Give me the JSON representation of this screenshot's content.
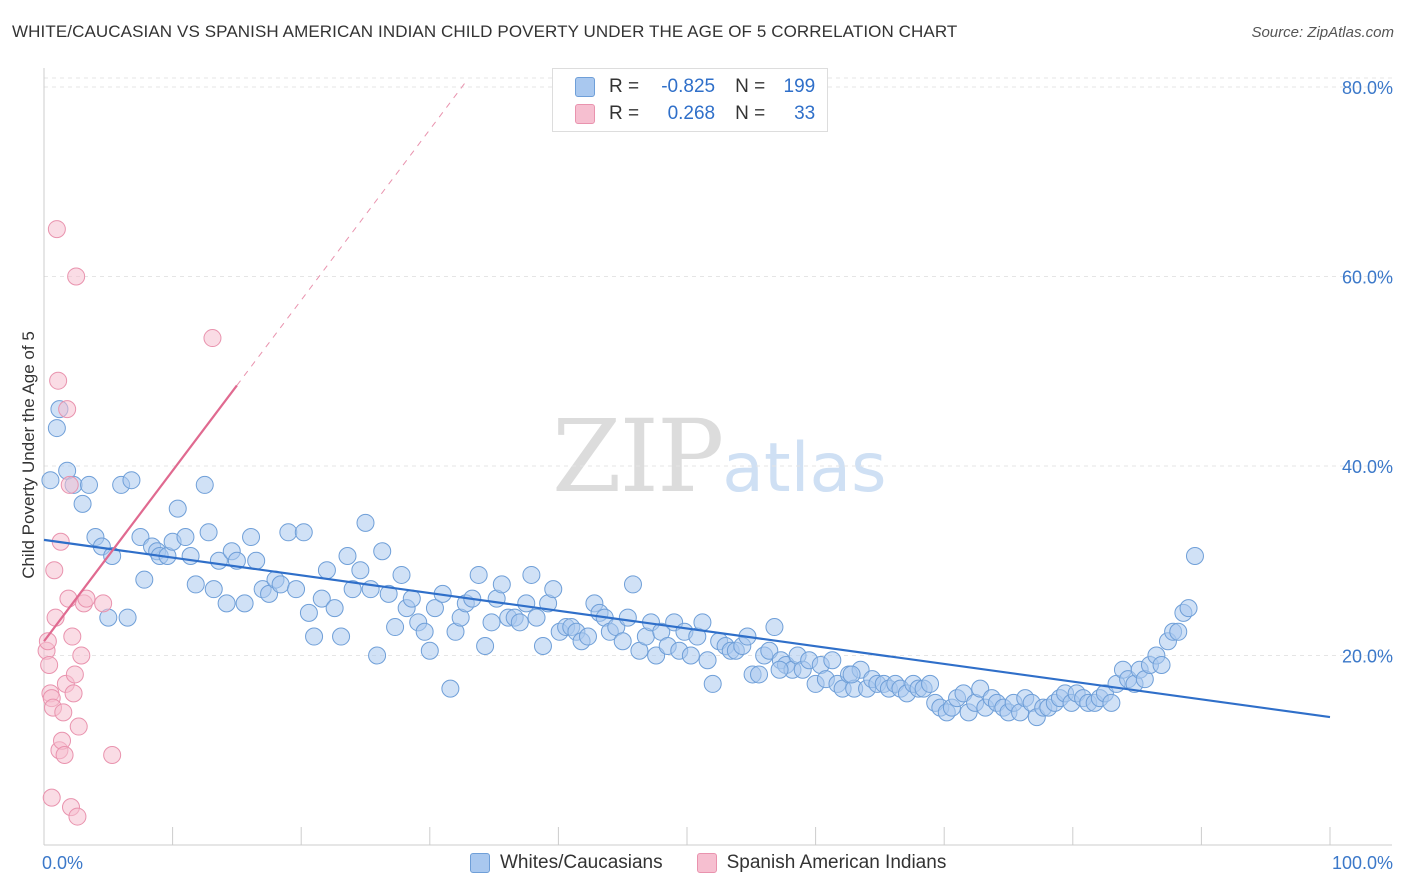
{
  "title": "WHITE/CAUCASIAN VS SPANISH AMERICAN INDIAN CHILD POVERTY UNDER THE AGE OF 5 CORRELATION CHART",
  "source": "Source: ZipAtlas.com",
  "watermark": {
    "zip": "ZIP",
    "atlas": "atlas"
  },
  "stats": [
    {
      "r_label": "R =",
      "r_value": "-0.825",
      "n_label": "N =",
      "n_value": "199"
    },
    {
      "r_label": "R =",
      "r_value": "0.268",
      "n_label": "N =",
      "n_value": "33"
    }
  ],
  "colors": {
    "blue_fill": "#a9c8ef",
    "blue_stroke": "#6f9fd8",
    "blue_line": "#2f6fc9",
    "pink_fill": "#f6bfd0",
    "pink_stroke": "#e993ae",
    "pink_line": "#e06a90",
    "axis_label": "#3b78c9",
    "grid": "#e5e5e5"
  },
  "chart_data": {
    "type": "scatter",
    "xlabel": "",
    "ylabel": "Child Poverty Under the Age of 5",
    "xlim": [
      0,
      100
    ],
    "ylim": [
      0,
      82
    ],
    "x_tick_labels": [
      "0.0%",
      "100.0%"
    ],
    "y_ticks": [
      20,
      40,
      60,
      80
    ],
    "y_tick_labels": [
      "20.0%",
      "40.0%",
      "60.0%",
      "80.0%"
    ],
    "grid": true,
    "legend": "bottom-center",
    "series": [
      {
        "name": "Whites/Caucasians",
        "points": [
          [
            0.5,
            38.5
          ],
          [
            1,
            44
          ],
          [
            1.2,
            46
          ],
          [
            1.8,
            39.5
          ],
          [
            2.3,
            38
          ],
          [
            3,
            36
          ],
          [
            3.5,
            38
          ],
          [
            4,
            32.5
          ],
          [
            4.5,
            31.5
          ],
          [
            5,
            24
          ],
          [
            5.3,
            30.5
          ],
          [
            6,
            38
          ],
          [
            6.5,
            24
          ],
          [
            6.8,
            38.5
          ],
          [
            7.5,
            32.5
          ],
          [
            7.8,
            28
          ],
          [
            8.4,
            31.5
          ],
          [
            8.8,
            31
          ],
          [
            9,
            30.5
          ],
          [
            9.6,
            30.5
          ],
          [
            10,
            32
          ],
          [
            10.4,
            35.5
          ],
          [
            11,
            32.5
          ],
          [
            11.4,
            30.5
          ],
          [
            11.8,
            27.5
          ],
          [
            12.5,
            38
          ],
          [
            12.8,
            33
          ],
          [
            13.2,
            27
          ],
          [
            13.6,
            30
          ],
          [
            14.2,
            25.5
          ],
          [
            14.6,
            31
          ],
          [
            15,
            30
          ],
          [
            15.6,
            25.5
          ],
          [
            16.1,
            32.5
          ],
          [
            16.5,
            30
          ],
          [
            17,
            27
          ],
          [
            17.5,
            26.5
          ],
          [
            18,
            28
          ],
          [
            18.4,
            27.5
          ],
          [
            19,
            33
          ],
          [
            19.6,
            27
          ],
          [
            20.2,
            33
          ],
          [
            20.6,
            24.5
          ],
          [
            21,
            22
          ],
          [
            21.6,
            26
          ],
          [
            22,
            29
          ],
          [
            22.6,
            25
          ],
          [
            23.1,
            22
          ],
          [
            23.6,
            30.5
          ],
          [
            24,
            27
          ],
          [
            24.6,
            29
          ],
          [
            25,
            34
          ],
          [
            25.4,
            27
          ],
          [
            25.9,
            20
          ],
          [
            26.3,
            31
          ],
          [
            26.8,
            26.5
          ],
          [
            27.3,
            23
          ],
          [
            27.8,
            28.5
          ],
          [
            28.2,
            25
          ],
          [
            28.6,
            26
          ],
          [
            29.1,
            23.5
          ],
          [
            29.6,
            22.5
          ],
          [
            30,
            20.5
          ],
          [
            30.4,
            25
          ],
          [
            31,
            26.5
          ],
          [
            31.6,
            16.5
          ],
          [
            32,
            22.5
          ],
          [
            32.4,
            24
          ],
          [
            32.8,
            25.5
          ],
          [
            33.3,
            26
          ],
          [
            33.8,
            28.5
          ],
          [
            34.3,
            21
          ],
          [
            34.8,
            23.5
          ],
          [
            35.2,
            26
          ],
          [
            35.6,
            27.5
          ],
          [
            36.1,
            24
          ],
          [
            36.6,
            24
          ],
          [
            37,
            23.5
          ],
          [
            37.5,
            25.5
          ],
          [
            37.9,
            28.5
          ],
          [
            38.3,
            24
          ],
          [
            38.8,
            21
          ],
          [
            39.2,
            25.5
          ],
          [
            39.6,
            27
          ],
          [
            40.1,
            22.5
          ],
          [
            40.6,
            23
          ],
          [
            41,
            23
          ],
          [
            41.4,
            22.5
          ],
          [
            41.8,
            21.5
          ],
          [
            42.3,
            22
          ],
          [
            42.8,
            25.5
          ],
          [
            43.2,
            24.5
          ],
          [
            43.6,
            24
          ],
          [
            44,
            22.5
          ],
          [
            44.5,
            23
          ],
          [
            45,
            21.5
          ],
          [
            45.4,
            24
          ],
          [
            45.8,
            27.5
          ],
          [
            46.3,
            20.5
          ],
          [
            46.8,
            22
          ],
          [
            47.2,
            23.5
          ],
          [
            47.6,
            20
          ],
          [
            48,
            22.5
          ],
          [
            48.5,
            21
          ],
          [
            49,
            23.5
          ],
          [
            49.4,
            20.5
          ],
          [
            49.8,
            22.5
          ],
          [
            50.3,
            20
          ],
          [
            50.8,
            22
          ],
          [
            51.2,
            23.5
          ],
          [
            51.6,
            19.5
          ],
          [
            52,
            17
          ],
          [
            52.5,
            21.5
          ],
          [
            53,
            21
          ],
          [
            53.4,
            20.5
          ],
          [
            53.8,
            20.5
          ],
          [
            54.3,
            21
          ],
          [
            54.7,
            22
          ],
          [
            55.1,
            18
          ],
          [
            55.6,
            18
          ],
          [
            56,
            20
          ],
          [
            56.4,
            20.5
          ],
          [
            56.8,
            23
          ],
          [
            57.3,
            19.5
          ],
          [
            57.7,
            19
          ],
          [
            58.2,
            18.5
          ],
          [
            58.6,
            20
          ],
          [
            59,
            18.5
          ],
          [
            59.5,
            19.5
          ],
          [
            60,
            17
          ],
          [
            60.4,
            19
          ],
          [
            60.8,
            17.5
          ],
          [
            61.3,
            19.5
          ],
          [
            61.7,
            17
          ],
          [
            62.1,
            16.5
          ],
          [
            62.6,
            18
          ],
          [
            63,
            16.5
          ],
          [
            63.5,
            18.5
          ],
          [
            64,
            16.5
          ],
          [
            64.4,
            17.5
          ],
          [
            64.8,
            17
          ],
          [
            65.3,
            17
          ],
          [
            65.7,
            16.5
          ],
          [
            66.2,
            17
          ],
          [
            66.6,
            16.5
          ],
          [
            67.1,
            16
          ],
          [
            67.6,
            17
          ],
          [
            68,
            16.5
          ],
          [
            68.4,
            16.5
          ],
          [
            68.9,
            17
          ],
          [
            69.3,
            15
          ],
          [
            69.7,
            14.5
          ],
          [
            70.2,
            14
          ],
          [
            70.6,
            14.5
          ],
          [
            71,
            15.5
          ],
          [
            71.5,
            16
          ],
          [
            71.9,
            14
          ],
          [
            72.4,
            15
          ],
          [
            72.8,
            16.5
          ],
          [
            73.2,
            14.5
          ],
          [
            73.7,
            15.5
          ],
          [
            74.1,
            15
          ],
          [
            74.6,
            14.5
          ],
          [
            75,
            14
          ],
          [
            75.4,
            15
          ],
          [
            75.9,
            14
          ],
          [
            76.3,
            15.5
          ],
          [
            76.8,
            15
          ],
          [
            77.2,
            13.5
          ],
          [
            77.7,
            14.5
          ],
          [
            78.1,
            14.5
          ],
          [
            78.6,
            15
          ],
          [
            79,
            15.5
          ],
          [
            79.4,
            16
          ],
          [
            79.9,
            15
          ],
          [
            80.3,
            16
          ],
          [
            80.8,
            15.5
          ],
          [
            81.2,
            15
          ],
          [
            81.7,
            15
          ],
          [
            82.1,
            15.5
          ],
          [
            82.5,
            16
          ],
          [
            83,
            15
          ],
          [
            83.4,
            17
          ],
          [
            83.9,
            18.5
          ],
          [
            84.3,
            17.5
          ],
          [
            84.8,
            17
          ],
          [
            85.2,
            18.5
          ],
          [
            85.6,
            17.5
          ],
          [
            86,
            19
          ],
          [
            86.5,
            20
          ],
          [
            86.9,
            19
          ],
          [
            87.4,
            21.5
          ],
          [
            87.8,
            22.5
          ],
          [
            88.2,
            22.5
          ],
          [
            88.6,
            24.5
          ],
          [
            89,
            25
          ],
          [
            89.5,
            30.5
          ],
          [
            62.8,
            18
          ],
          [
            57.2,
            18.5
          ]
        ]
      },
      {
        "name": "Spanish American Indians",
        "points": [
          [
            0.2,
            20.5
          ],
          [
            0.3,
            21.5
          ],
          [
            0.4,
            19
          ],
          [
            0.5,
            16
          ],
          [
            0.6,
            15.5
          ],
          [
            0.7,
            14.5
          ],
          [
            0.8,
            29
          ],
          [
            0.9,
            24
          ],
          [
            1,
            65
          ],
          [
            1.1,
            49
          ],
          [
            1.2,
            10
          ],
          [
            1.3,
            32
          ],
          [
            1.4,
            11
          ],
          [
            1.5,
            14
          ],
          [
            1.6,
            9.5
          ],
          [
            1.7,
            17
          ],
          [
            1.8,
            46
          ],
          [
            1.9,
            26
          ],
          [
            2,
            38
          ],
          [
            2.1,
            4
          ],
          [
            2.2,
            22
          ],
          [
            2.3,
            16
          ],
          [
            2.4,
            18
          ],
          [
            2.5,
            60
          ],
          [
            2.6,
            3
          ],
          [
            2.7,
            12.5
          ],
          [
            2.9,
            20
          ],
          [
            3.1,
            25.5
          ],
          [
            3.3,
            26
          ],
          [
            4.6,
            25.5
          ],
          [
            5.3,
            9.5
          ],
          [
            13.1,
            53.5
          ],
          [
            0.6,
            5
          ]
        ]
      }
    ],
    "trend_lines": [
      {
        "series": "Whites/Caucasians",
        "from": [
          0,
          32.2
        ],
        "to": [
          100,
          13.5
        ]
      },
      {
        "series": "Spanish American Indians",
        "from": [
          0,
          21.5
        ],
        "to": [
          15,
          48.5
        ]
      }
    ]
  }
}
